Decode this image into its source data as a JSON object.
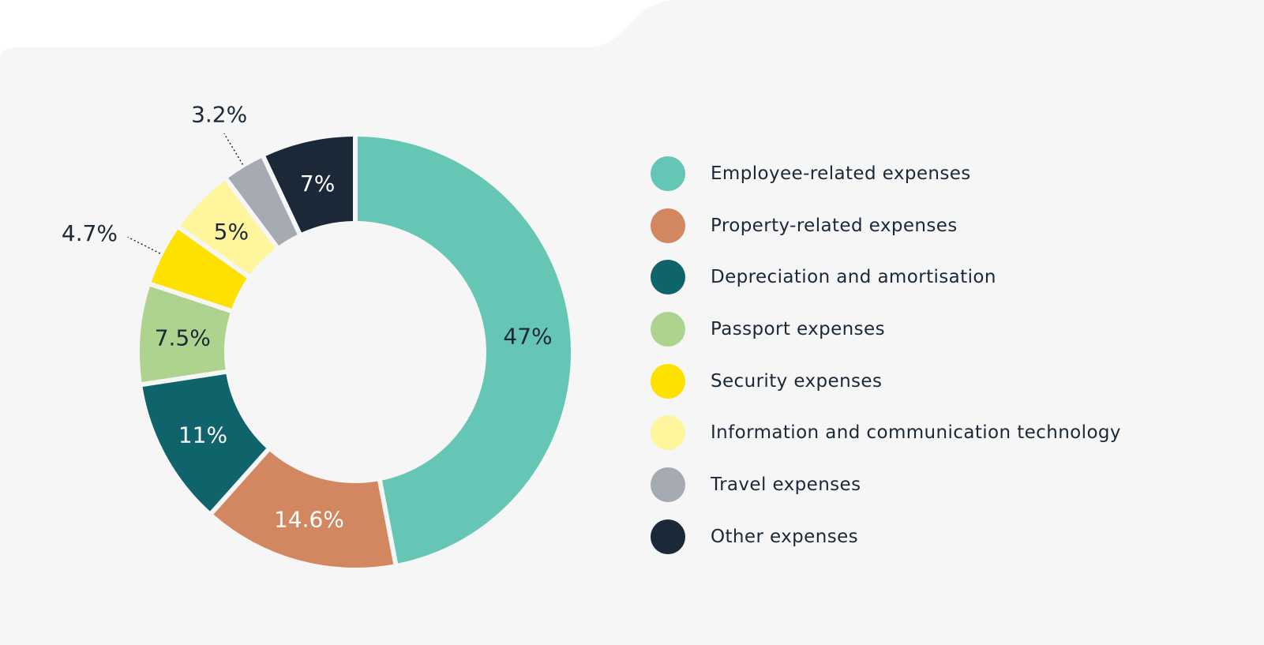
{
  "chart_data": {
    "type": "pie",
    "donut": true,
    "title": "",
    "legend_position": "right",
    "slices": [
      {
        "name": "Employee-related expenses",
        "value": 47,
        "label": "47%",
        "color": "#66c6b5",
        "label_color": "#1b2838"
      },
      {
        "name": "Property-related expenses",
        "value": 14.6,
        "label": "14.6%",
        "color": "#d38760",
        "label_color": "#ffffff"
      },
      {
        "name": "Depreciation and amortisation",
        "value": 11,
        "label": "11%",
        "color": "#0f636a",
        "label_color": "#ffffff"
      },
      {
        "name": "Passport expenses",
        "value": 7.5,
        "label": "7.5%",
        "color": "#aed38f",
        "label_color": "#1b2838"
      },
      {
        "name": "Security expenses",
        "value": 4.7,
        "label": "4.7%",
        "color": "#ffe100",
        "label_color": "#1b2838",
        "callout": true
      },
      {
        "name": "Information and communication technology",
        "value": 5,
        "label": "5%",
        "color": "#fff59c",
        "label_color": "#1b2838"
      },
      {
        "name": "Travel expenses",
        "value": 3.2,
        "label": "3.2%",
        "color": "#a5aab3",
        "label_color": "#1b2838",
        "callout": true
      },
      {
        "name": "Other expenses",
        "value": 7,
        "label": "7%",
        "color": "#1b2838",
        "label_color": "#ffffff"
      }
    ]
  },
  "colors": {
    "panel_background": "#f5f6f5",
    "page_background": "#ffffff",
    "text": "#1b2838"
  }
}
